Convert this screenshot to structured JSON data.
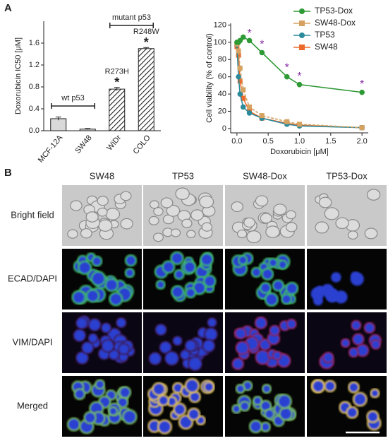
{
  "panels": [
    "A",
    "B"
  ],
  "chart_data": [
    {
      "type": "bar",
      "y_label": "Doxorubicin IC50 [μM]",
      "categories": [
        "MCF-12A",
        "SW48",
        "WiDr",
        "COLO"
      ],
      "values": [
        0.22,
        0.03,
        0.76,
        1.5
      ],
      "errors": [
        0.03,
        0.01,
        0.03,
        0.02
      ],
      "colors": [
        "#d9d9d9",
        "#d9d9d9",
        "hatch",
        "hatch"
      ],
      "bar_labels": [
        null,
        null,
        "R273H",
        "R248W"
      ],
      "significance": [
        null,
        null,
        "*",
        "*"
      ],
      "group_labels": [
        "wt p53",
        "mutant p53"
      ],
      "ylim": [
        0,
        2
      ],
      "yticks": [
        {
          "value": 0,
          "label": "0.0"
        },
        0.4,
        0.8,
        1.2,
        1.6
      ]
    },
    {
      "type": "line",
      "x_label": "Doxorubicin [μM]",
      "y_label": "Cell viability (% of control)",
      "x": [
        0,
        0.025,
        0.05,
        0.1,
        0.2,
        0.4,
        0.8,
        1.0,
        2.0
      ],
      "series": [
        {
          "name": "TP53-Dox",
          "color": "#2e9a35",
          "marker": "circle",
          "values": [
            100,
            100,
            102,
            106,
            102,
            88,
            60,
            51,
            42
          ]
        },
        {
          "name": "SW48-Dox",
          "color": "#d6a261",
          "marker": "square",
          "values": [
            98,
            90,
            70,
            45,
            25,
            15,
            8,
            5,
            1
          ]
        },
        {
          "name": "TP53",
          "color": "#2b8b9b",
          "marker": "circle",
          "values": [
            97,
            60,
            40,
            25,
            18,
            12,
            5,
            3,
            1
          ]
        },
        {
          "name": "SW48",
          "color": "#ec6a2c",
          "marker": "square",
          "values": [
            95,
            85,
            55,
            35,
            20,
            12,
            6,
            4,
            1
          ]
        }
      ],
      "annotations": [
        {
          "text": "*",
          "x": 0.2,
          "y": 110
        },
        {
          "text": "*",
          "x": 0.4,
          "y": 97
        },
        {
          "text": "*",
          "x": 0.8,
          "y": 70
        },
        {
          "text": "*",
          "x": 1.0,
          "y": 60
        },
        {
          "text": "*",
          "x": 2.0,
          "y": 51
        }
      ],
      "xlim": [
        -0.1,
        2.1
      ],
      "xticks": [
        {
          "value": 0,
          "label": "0.0"
        },
        0.5,
        {
          "value": 1,
          "label": "1.0"
        },
        1.5,
        {
          "value": 2,
          "label": "2.0"
        }
      ],
      "ylim": [
        -5,
        122
      ],
      "yticks": [
        0,
        20,
        40,
        60,
        80,
        100,
        120
      ],
      "legend": "top-right"
    }
  ],
  "panel_b": {
    "columns": [
      "SW48",
      "TP53",
      "SW48-Dox",
      "TP53-Dox"
    ],
    "rows": [
      "Bright field",
      "ECAD/DAPI",
      "VIM/DAPI",
      "Merged"
    ]
  }
}
